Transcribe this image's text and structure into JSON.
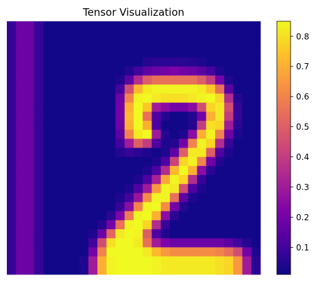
{
  "chart_data": {
    "type": "heatmap",
    "title": "Tensor Visualization",
    "xlabel": "",
    "ylabel": "",
    "colormap": "plasma",
    "grid": false,
    "value_range": [
      0.01,
      0.85
    ],
    "colorbar": {
      "position": "right",
      "ticks": [
        0.1,
        0.2,
        0.3,
        0.4,
        0.5,
        0.6,
        0.7,
        0.8
      ],
      "tick_labels": [
        "0.1",
        "0.2",
        "0.3",
        "0.4",
        "0.5",
        "0.6",
        "0.7",
        "0.8"
      ]
    },
    "shape": [
      28,
      28
    ],
    "values": [
      [
        0.08,
        0.18,
        0.18,
        0.08,
        0.02,
        0.02,
        0.02,
        0.02,
        0.02,
        0.02,
        0.02,
        0.02,
        0.02,
        0.02,
        0.02,
        0.02,
        0.02,
        0.02,
        0.02,
        0.02,
        0.02,
        0.02,
        0.02,
        0.02,
        0.02,
        0.02,
        0.02,
        0.02
      ],
      [
        0.08,
        0.18,
        0.18,
        0.08,
        0.02,
        0.02,
        0.02,
        0.02,
        0.02,
        0.02,
        0.02,
        0.02,
        0.02,
        0.02,
        0.02,
        0.02,
        0.02,
        0.02,
        0.02,
        0.02,
        0.02,
        0.02,
        0.02,
        0.02,
        0.02,
        0.02,
        0.02,
        0.02
      ],
      [
        0.08,
        0.18,
        0.18,
        0.08,
        0.02,
        0.02,
        0.02,
        0.02,
        0.02,
        0.02,
        0.02,
        0.02,
        0.02,
        0.02,
        0.02,
        0.02,
        0.02,
        0.02,
        0.02,
        0.02,
        0.02,
        0.02,
        0.02,
        0.02,
        0.02,
        0.02,
        0.02,
        0.02
      ],
      [
        0.08,
        0.18,
        0.18,
        0.08,
        0.02,
        0.02,
        0.02,
        0.02,
        0.02,
        0.02,
        0.02,
        0.02,
        0.02,
        0.02,
        0.02,
        0.02,
        0.02,
        0.02,
        0.02,
        0.02,
        0.02,
        0.02,
        0.02,
        0.02,
        0.02,
        0.02,
        0.02,
        0.02
      ],
      [
        0.08,
        0.18,
        0.18,
        0.08,
        0.02,
        0.02,
        0.02,
        0.02,
        0.02,
        0.02,
        0.02,
        0.02,
        0.02,
        0.02,
        0.02,
        0.05,
        0.06,
        0.06,
        0.06,
        0.06,
        0.05,
        0.04,
        0.02,
        0.02,
        0.02,
        0.02,
        0.02,
        0.02
      ],
      [
        0.08,
        0.18,
        0.18,
        0.08,
        0.02,
        0.02,
        0.02,
        0.02,
        0.02,
        0.02,
        0.02,
        0.02,
        0.02,
        0.05,
        0.1,
        0.15,
        0.18,
        0.2,
        0.22,
        0.2,
        0.18,
        0.15,
        0.1,
        0.04,
        0.02,
        0.02,
        0.02,
        0.02
      ],
      [
        0.08,
        0.18,
        0.18,
        0.08,
        0.02,
        0.02,
        0.02,
        0.02,
        0.02,
        0.02,
        0.02,
        0.02,
        0.04,
        0.15,
        0.35,
        0.5,
        0.55,
        0.55,
        0.55,
        0.55,
        0.55,
        0.5,
        0.4,
        0.2,
        0.04,
        0.02,
        0.02,
        0.02
      ],
      [
        0.08,
        0.18,
        0.18,
        0.08,
        0.02,
        0.02,
        0.02,
        0.02,
        0.02,
        0.02,
        0.02,
        0.02,
        0.1,
        0.45,
        0.72,
        0.82,
        0.84,
        0.84,
        0.84,
        0.84,
        0.84,
        0.82,
        0.75,
        0.55,
        0.15,
        0.02,
        0.02,
        0.02
      ],
      [
        0.08,
        0.18,
        0.18,
        0.08,
        0.02,
        0.02,
        0.02,
        0.02,
        0.02,
        0.02,
        0.02,
        0.02,
        0.18,
        0.6,
        0.84,
        0.85,
        0.82,
        0.8,
        0.8,
        0.8,
        0.82,
        0.84,
        0.85,
        0.78,
        0.35,
        0.05,
        0.02,
        0.02
      ],
      [
        0.08,
        0.18,
        0.18,
        0.08,
        0.02,
        0.02,
        0.02,
        0.02,
        0.02,
        0.02,
        0.02,
        0.02,
        0.2,
        0.7,
        0.85,
        0.75,
        0.3,
        0.25,
        0.2,
        0.2,
        0.25,
        0.45,
        0.78,
        0.82,
        0.45,
        0.08,
        0.02,
        0.02
      ],
      [
        0.08,
        0.18,
        0.18,
        0.08,
        0.02,
        0.02,
        0.02,
        0.02,
        0.02,
        0.02,
        0.02,
        0.02,
        0.2,
        0.72,
        0.85,
        0.55,
        0.12,
        0.05,
        0.02,
        0.02,
        0.05,
        0.2,
        0.7,
        0.82,
        0.4,
        0.08,
        0.02,
        0.02
      ],
      [
        0.08,
        0.18,
        0.18,
        0.08,
        0.02,
        0.02,
        0.02,
        0.02,
        0.02,
        0.02,
        0.02,
        0.02,
        0.18,
        0.7,
        0.85,
        0.7,
        0.12,
        0.02,
        0.02,
        0.02,
        0.05,
        0.4,
        0.8,
        0.78,
        0.3,
        0.06,
        0.02,
        0.02
      ],
      [
        0.08,
        0.18,
        0.18,
        0.08,
        0.02,
        0.02,
        0.02,
        0.02,
        0.02,
        0.02,
        0.02,
        0.02,
        0.15,
        0.6,
        0.82,
        0.85,
        0.3,
        0.05,
        0.02,
        0.04,
        0.25,
        0.7,
        0.84,
        0.6,
        0.18,
        0.04,
        0.02,
        0.02
      ],
      [
        0.08,
        0.18,
        0.18,
        0.08,
        0.02,
        0.02,
        0.02,
        0.02,
        0.02,
        0.02,
        0.02,
        0.02,
        0.1,
        0.3,
        0.5,
        0.4,
        0.12,
        0.04,
        0.05,
        0.2,
        0.6,
        0.84,
        0.78,
        0.35,
        0.08,
        0.02,
        0.02,
        0.02
      ],
      [
        0.08,
        0.18,
        0.18,
        0.08,
        0.02,
        0.02,
        0.02,
        0.02,
        0.02,
        0.02,
        0.02,
        0.02,
        0.05,
        0.08,
        0.06,
        0.04,
        0.02,
        0.04,
        0.15,
        0.5,
        0.82,
        0.82,
        0.5,
        0.12,
        0.04,
        0.02,
        0.02,
        0.02
      ],
      [
        0.08,
        0.18,
        0.18,
        0.08,
        0.02,
        0.02,
        0.02,
        0.02,
        0.02,
        0.02,
        0.02,
        0.02,
        0.02,
        0.02,
        0.02,
        0.02,
        0.04,
        0.12,
        0.42,
        0.78,
        0.84,
        0.6,
        0.2,
        0.05,
        0.02,
        0.02,
        0.02,
        0.02
      ],
      [
        0.08,
        0.18,
        0.18,
        0.08,
        0.02,
        0.02,
        0.02,
        0.02,
        0.02,
        0.02,
        0.02,
        0.02,
        0.02,
        0.02,
        0.02,
        0.04,
        0.12,
        0.35,
        0.72,
        0.85,
        0.7,
        0.25,
        0.06,
        0.02,
        0.02,
        0.02,
        0.02,
        0.02
      ],
      [
        0.08,
        0.18,
        0.18,
        0.08,
        0.02,
        0.02,
        0.02,
        0.02,
        0.02,
        0.02,
        0.02,
        0.02,
        0.02,
        0.02,
        0.04,
        0.12,
        0.32,
        0.68,
        0.84,
        0.78,
        0.35,
        0.08,
        0.02,
        0.02,
        0.02,
        0.02,
        0.02,
        0.02
      ],
      [
        0.08,
        0.18,
        0.18,
        0.08,
        0.02,
        0.02,
        0.02,
        0.02,
        0.02,
        0.02,
        0.02,
        0.02,
        0.02,
        0.04,
        0.12,
        0.3,
        0.65,
        0.84,
        0.82,
        0.45,
        0.12,
        0.04,
        0.02,
        0.02,
        0.02,
        0.02,
        0.02,
        0.02
      ],
      [
        0.08,
        0.18,
        0.18,
        0.08,
        0.02,
        0.02,
        0.02,
        0.02,
        0.02,
        0.02,
        0.02,
        0.02,
        0.04,
        0.1,
        0.28,
        0.62,
        0.84,
        0.84,
        0.55,
        0.15,
        0.04,
        0.02,
        0.02,
        0.02,
        0.02,
        0.02,
        0.02,
        0.02
      ],
      [
        0.08,
        0.18,
        0.18,
        0.08,
        0.02,
        0.02,
        0.02,
        0.02,
        0.02,
        0.02,
        0.02,
        0.02,
        0.08,
        0.25,
        0.6,
        0.84,
        0.85,
        0.62,
        0.2,
        0.05,
        0.02,
        0.02,
        0.02,
        0.02,
        0.02,
        0.02,
        0.02,
        0.02
      ],
      [
        0.08,
        0.18,
        0.18,
        0.08,
        0.02,
        0.02,
        0.02,
        0.02,
        0.02,
        0.02,
        0.02,
        0.06,
        0.22,
        0.58,
        0.84,
        0.85,
        0.7,
        0.25,
        0.06,
        0.02,
        0.02,
        0.02,
        0.02,
        0.02,
        0.02,
        0.02,
        0.02,
        0.02
      ],
      [
        0.08,
        0.18,
        0.18,
        0.08,
        0.02,
        0.02,
        0.02,
        0.02,
        0.02,
        0.02,
        0.05,
        0.2,
        0.55,
        0.84,
        0.85,
        0.78,
        0.35,
        0.08,
        0.02,
        0.02,
        0.02,
        0.02,
        0.02,
        0.02,
        0.02,
        0.02,
        0.02,
        0.02
      ],
      [
        0.08,
        0.18,
        0.18,
        0.08,
        0.02,
        0.02,
        0.02,
        0.02,
        0.02,
        0.04,
        0.18,
        0.52,
        0.82,
        0.85,
        0.84,
        0.5,
        0.12,
        0.04,
        0.02,
        0.02,
        0.02,
        0.02,
        0.02,
        0.02,
        0.02,
        0.02,
        0.02,
        0.02
      ],
      [
        0.08,
        0.18,
        0.18,
        0.08,
        0.02,
        0.02,
        0.02,
        0.02,
        0.02,
        0.1,
        0.45,
        0.8,
        0.85,
        0.85,
        0.82,
        0.55,
        0.3,
        0.22,
        0.18,
        0.18,
        0.18,
        0.18,
        0.18,
        0.18,
        0.15,
        0.1,
        0.05,
        0.02
      ],
      [
        0.08,
        0.18,
        0.18,
        0.08,
        0.02,
        0.02,
        0.02,
        0.02,
        0.02,
        0.2,
        0.6,
        0.85,
        0.85,
        0.85,
        0.85,
        0.82,
        0.72,
        0.65,
        0.62,
        0.62,
        0.62,
        0.62,
        0.62,
        0.6,
        0.55,
        0.45,
        0.2,
        0.04
      ],
      [
        0.08,
        0.18,
        0.18,
        0.08,
        0.02,
        0.02,
        0.02,
        0.02,
        0.04,
        0.3,
        0.7,
        0.84,
        0.85,
        0.85,
        0.85,
        0.85,
        0.84,
        0.82,
        0.82,
        0.82,
        0.82,
        0.82,
        0.82,
        0.8,
        0.78,
        0.65,
        0.3,
        0.06
      ],
      [
        0.08,
        0.18,
        0.18,
        0.08,
        0.02,
        0.02,
        0.02,
        0.02,
        0.04,
        0.3,
        0.7,
        0.84,
        0.85,
        0.85,
        0.85,
        0.85,
        0.84,
        0.82,
        0.82,
        0.82,
        0.82,
        0.82,
        0.82,
        0.8,
        0.78,
        0.65,
        0.3,
        0.06
      ]
    ]
  }
}
